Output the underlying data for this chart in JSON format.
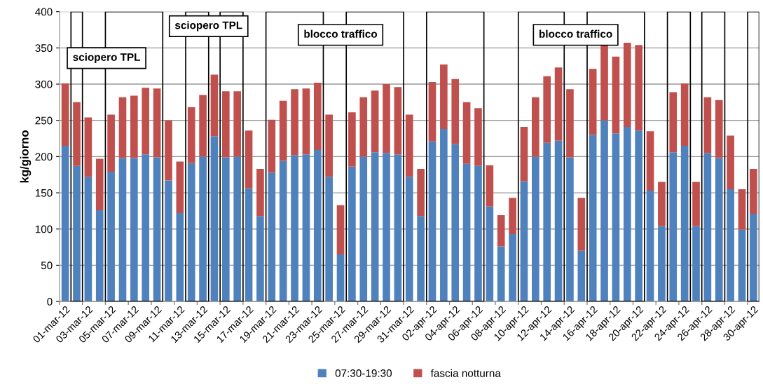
{
  "chart_data": {
    "type": "bar",
    "stacked": true,
    "ylabel": "kg/giorno",
    "categories": [
      "01-mar-12",
      null,
      "03-mar-12",
      null,
      "05-mar-12",
      null,
      "07-mar-12",
      null,
      "09-mar-12",
      null,
      "11-mar-12",
      null,
      "13-mar-12",
      null,
      "15-mar-12",
      null,
      "17-mar-12",
      null,
      "19-mar-12",
      null,
      "21-mar-12",
      null,
      "23-mar-12",
      null,
      "25-mar-12",
      null,
      "27-mar-12",
      null,
      "29-mar-12",
      null,
      "31-mar-12",
      null,
      "02-apr-12",
      null,
      "04-apr-12",
      null,
      "06-apr-12",
      null,
      "08-apr-12",
      null,
      "10-apr-12",
      null,
      "12-apr-12",
      null,
      "14-apr-12",
      null,
      "16-apr-12",
      null,
      "18-apr-12",
      null,
      "20-apr-12",
      null,
      "22-apr-12",
      null,
      "24-apr-12",
      null,
      "26-apr-12",
      null,
      "28-apr-12",
      null,
      "30-apr-12"
    ],
    "series": [
      {
        "name": "07:30-19:30",
        "color": "#4f81bd",
        "values": [
          215,
          187,
          172,
          126,
          179,
          198,
          198,
          203,
          199,
          167,
          122,
          191,
          200,
          228,
          199,
          200,
          156,
          118,
          178,
          194,
          202,
          203,
          209,
          172,
          65,
          186,
          200,
          206,
          205,
          203,
          172,
          118,
          221,
          238,
          217,
          190,
          187,
          131,
          76,
          93,
          166,
          200,
          219,
          222,
          199,
          70,
          230,
          250,
          232,
          241,
          236,
          153,
          104,
          206,
          215,
          104,
          205,
          198,
          155,
          99,
          121
        ]
      },
      {
        "name": "fascia notturna",
        "color": "#c0504d",
        "values": [
          86,
          88,
          82,
          71,
          79,
          84,
          86,
          92,
          95,
          83,
          71,
          77,
          85,
          85,
          91,
          90,
          80,
          65,
          73,
          83,
          91,
          91,
          93,
          86,
          68,
          75,
          82,
          85,
          95,
          93,
          86,
          65,
          82,
          89,
          90,
          85,
          80,
          57,
          43,
          50,
          75,
          82,
          92,
          101,
          94,
          73,
          91,
          105,
          106,
          116,
          118,
          82,
          61,
          83,
          86,
          61,
          77,
          80,
          74,
          56,
          62
        ]
      }
    ],
    "ylim": [
      0,
      400
    ],
    "yticks": [
      0,
      50,
      100,
      150,
      200,
      250,
      300,
      350,
      400
    ],
    "grid": "y",
    "legend": "bottom",
    "annotations": [
      "sciopero TPL",
      "sciopero TPL",
      "blocco traffico",
      "blocco traffico"
    ]
  }
}
